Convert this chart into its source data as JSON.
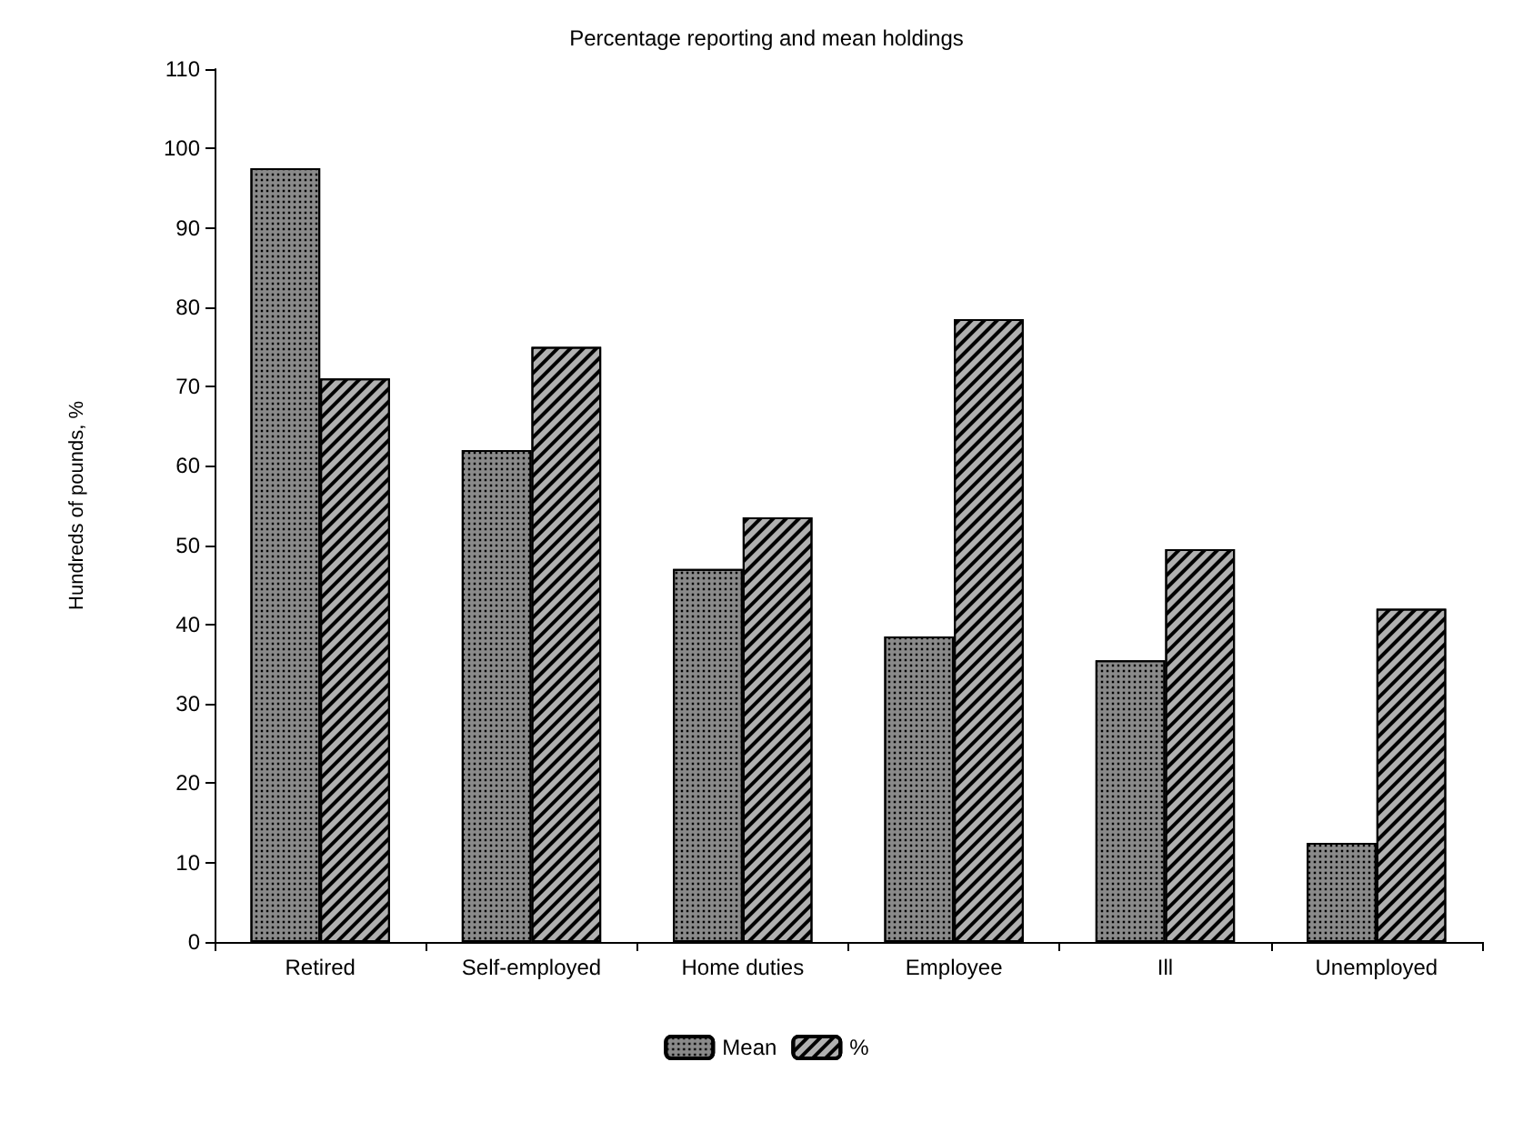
{
  "chart_data": {
    "type": "bar",
    "title": "Percentage reporting and mean holdings",
    "ylabel": "Hundreds of pounds, %",
    "categories": [
      "Retired",
      "Self-employed",
      "Home duties",
      "Employee",
      "Ill",
      "Unemployed"
    ],
    "series": [
      {
        "name": "Mean",
        "color": "#8a8a8a",
        "values": [
          97.5,
          62,
          47,
          38.5,
          35.5,
          12.5
        ]
      },
      {
        "name": "%",
        "color": "#b0b0b0",
        "values": [
          71,
          75,
          53.5,
          78.5,
          49.5,
          42
        ]
      }
    ],
    "ylim": [
      0,
      110
    ],
    "yticks": [
      0,
      10,
      20,
      30,
      40,
      50,
      60,
      70,
      80,
      90,
      100,
      110
    ],
    "grid": false,
    "legend": "bottom"
  }
}
